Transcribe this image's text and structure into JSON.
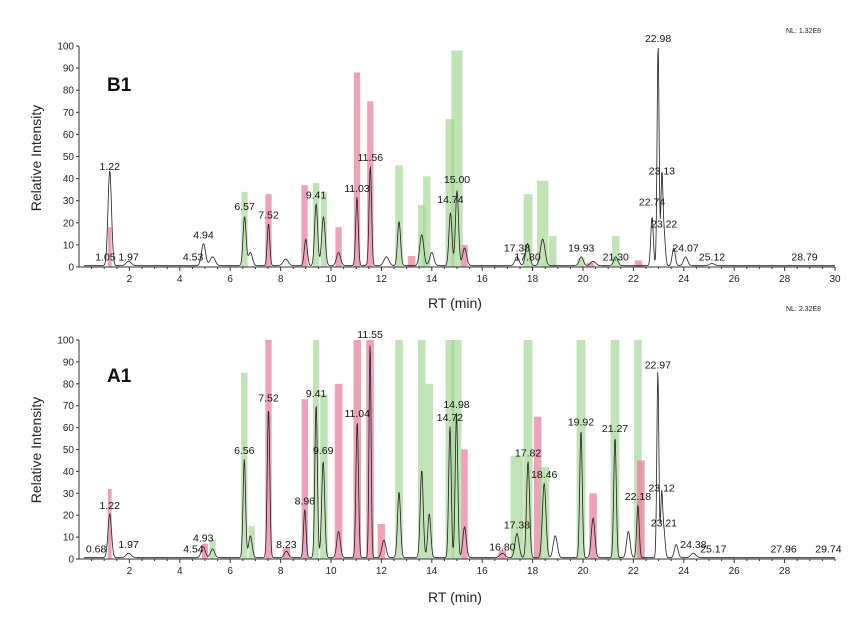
{
  "chart_data": [
    {
      "type": "chromatogram",
      "panel": "B1",
      "nl": "NL: 1.32E8",
      "xlabel": "RT (min)",
      "ylabel": "Relative Intensity",
      "xlim": [
        0,
        30
      ],
      "ylim": [
        0,
        100
      ],
      "x_ticks": [
        2,
        4,
        6,
        8,
        10,
        12,
        14,
        16,
        18,
        20,
        22,
        24,
        26,
        28,
        30
      ],
      "y_ticks": [
        0,
        10,
        20,
        30,
        40,
        50,
        60,
        70,
        80,
        90,
        100
      ],
      "peak_labels": [
        {
          "rt": 1.05,
          "text": "1.05",
          "y": 2
        },
        {
          "rt": 1.22,
          "text": "1.22",
          "y": 43
        },
        {
          "rt": 1.97,
          "text": "1.97",
          "y": 2
        },
        {
          "rt": 4.53,
          "text": "4.53",
          "y": 2
        },
        {
          "rt": 4.94,
          "text": "4.94",
          "y": 12
        },
        {
          "rt": 6.57,
          "text": "6.57",
          "y": 25
        },
        {
          "rt": 7.52,
          "text": "7.52",
          "y": 21
        },
        {
          "rt": 9.41,
          "text": "9.41",
          "y": 30
        },
        {
          "rt": 11.03,
          "text": "11.03",
          "y": 33
        },
        {
          "rt": 11.56,
          "text": "11.56",
          "y": 47
        },
        {
          "rt": 14.74,
          "text": "14.74",
          "y": 28
        },
        {
          "rt": 15.0,
          "text": "15.00",
          "y": 37
        },
        {
          "rt": 17.38,
          "text": "17.38",
          "y": 6
        },
        {
          "rt": 17.8,
          "text": "17.80",
          "y": 2
        },
        {
          "rt": 19.93,
          "text": "19.93",
          "y": 6
        },
        {
          "rt": 21.3,
          "text": "21.30",
          "y": 2
        },
        {
          "rt": 22.74,
          "text": "22.74",
          "y": 27
        },
        {
          "rt": 22.98,
          "text": "22.98",
          "y": 101
        },
        {
          "rt": 23.13,
          "text": "23.13",
          "y": 41
        },
        {
          "rt": 23.22,
          "text": "23.22",
          "y": 17
        },
        {
          "rt": 24.07,
          "text": "24.07",
          "y": 6
        },
        {
          "rt": 25.12,
          "text": "25.12",
          "y": 2
        },
        {
          "rt": 28.79,
          "text": "28.79",
          "y": 2
        }
      ],
      "peaks": [
        {
          "rt": 1.22,
          "h": 43,
          "w": 0.07
        },
        {
          "rt": 1.97,
          "h": 2,
          "w": 0.1
        },
        {
          "rt": 4.94,
          "h": 10,
          "w": 0.08
        },
        {
          "rt": 5.3,
          "h": 4,
          "w": 0.1
        },
        {
          "rt": 6.57,
          "h": 22,
          "w": 0.06
        },
        {
          "rt": 6.8,
          "h": 6,
          "w": 0.08
        },
        {
          "rt": 7.52,
          "h": 19,
          "w": 0.05
        },
        {
          "rt": 8.2,
          "h": 3,
          "w": 0.1
        },
        {
          "rt": 9.0,
          "h": 12,
          "w": 0.06
        },
        {
          "rt": 9.41,
          "h": 28,
          "w": 0.06
        },
        {
          "rt": 9.7,
          "h": 22,
          "w": 0.07
        },
        {
          "rt": 10.3,
          "h": 6,
          "w": 0.08
        },
        {
          "rt": 11.03,
          "h": 31,
          "w": 0.05
        },
        {
          "rt": 11.56,
          "h": 45,
          "w": 0.05
        },
        {
          "rt": 12.2,
          "h": 4,
          "w": 0.1
        },
        {
          "rt": 12.7,
          "h": 20,
          "w": 0.06
        },
        {
          "rt": 13.6,
          "h": 14,
          "w": 0.08
        },
        {
          "rt": 14.0,
          "h": 6,
          "w": 0.08
        },
        {
          "rt": 14.74,
          "h": 24,
          "w": 0.06
        },
        {
          "rt": 15.0,
          "h": 34,
          "w": 0.06
        },
        {
          "rt": 15.3,
          "h": 8,
          "w": 0.08
        },
        {
          "rt": 17.38,
          "h": 4,
          "w": 0.08
        },
        {
          "rt": 17.8,
          "h": 10,
          "w": 0.08
        },
        {
          "rt": 18.4,
          "h": 12,
          "w": 0.09
        },
        {
          "rt": 19.93,
          "h": 4,
          "w": 0.08
        },
        {
          "rt": 20.4,
          "h": 2,
          "w": 0.1
        },
        {
          "rt": 21.3,
          "h": 4,
          "w": 0.08
        },
        {
          "rt": 22.74,
          "h": 22,
          "w": 0.05
        },
        {
          "rt": 22.98,
          "h": 100,
          "w": 0.04
        },
        {
          "rt": 23.13,
          "h": 40,
          "w": 0.04
        },
        {
          "rt": 23.22,
          "h": 14,
          "w": 0.05
        },
        {
          "rt": 23.6,
          "h": 8,
          "w": 0.06
        },
        {
          "rt": 24.07,
          "h": 4,
          "w": 0.08
        },
        {
          "rt": 25.12,
          "h": 1,
          "w": 0.1
        }
      ],
      "bars": [
        {
          "rt": 1.22,
          "h": 18,
          "w": 0.15,
          "color": "pink"
        },
        {
          "rt": 6.57,
          "h": 34,
          "w": 0.25,
          "color": "green"
        },
        {
          "rt": 7.52,
          "h": 33,
          "w": 0.25,
          "color": "pink"
        },
        {
          "rt": 8.95,
          "h": 37,
          "w": 0.25,
          "color": "pink"
        },
        {
          "rt": 9.41,
          "h": 38,
          "w": 0.25,
          "color": "green"
        },
        {
          "rt": 9.72,
          "h": 34,
          "w": 0.25,
          "color": "green"
        },
        {
          "rt": 10.3,
          "h": 18,
          "w": 0.25,
          "color": "pink"
        },
        {
          "rt": 11.03,
          "h": 88,
          "w": 0.25,
          "color": "pink"
        },
        {
          "rt": 11.56,
          "h": 75,
          "w": 0.25,
          "color": "pink"
        },
        {
          "rt": 12.7,
          "h": 46,
          "w": 0.3,
          "color": "green"
        },
        {
          "rt": 13.2,
          "h": 5,
          "w": 0.3,
          "color": "pink"
        },
        {
          "rt": 13.6,
          "h": 28,
          "w": 0.3,
          "color": "green"
        },
        {
          "rt": 13.8,
          "h": 41,
          "w": 0.3,
          "color": "green"
        },
        {
          "rt": 14.72,
          "h": 67,
          "w": 0.35,
          "color": "green"
        },
        {
          "rt": 15.0,
          "h": 98,
          "w": 0.45,
          "color": "green"
        },
        {
          "rt": 15.3,
          "h": 10,
          "w": 0.25,
          "color": "pink"
        },
        {
          "rt": 17.82,
          "h": 33,
          "w": 0.35,
          "color": "green"
        },
        {
          "rt": 18.4,
          "h": 39,
          "w": 0.45,
          "color": "green"
        },
        {
          "rt": 18.8,
          "h": 14,
          "w": 0.3,
          "color": "green"
        },
        {
          "rt": 19.93,
          "h": 4,
          "w": 0.3,
          "color": "green"
        },
        {
          "rt": 20.3,
          "h": 2,
          "w": 0.3,
          "color": "pink"
        },
        {
          "rt": 21.3,
          "h": 14,
          "w": 0.3,
          "color": "green"
        },
        {
          "rt": 22.2,
          "h": 3,
          "w": 0.3,
          "color": "pink"
        }
      ]
    },
    {
      "type": "chromatogram",
      "panel": "A1",
      "nl": "NL: 2.32E8",
      "xlabel": "RT (min)",
      "ylabel": "Relative Intensity",
      "xlim": [
        0,
        30
      ],
      "ylim": [
        0,
        100
      ],
      "x_ticks": [
        2,
        4,
        6,
        8,
        10,
        12,
        14,
        16,
        18,
        20,
        22,
        24,
        26,
        28
      ],
      "y_ticks": [
        0,
        10,
        20,
        30,
        40,
        50,
        60,
        70,
        80,
        90,
        100
      ],
      "peak_labels": [
        {
          "rt": 0.68,
          "text": "0.68",
          "y": 2
        },
        {
          "rt": 1.22,
          "text": "1.22",
          "y": 22
        },
        {
          "rt": 1.97,
          "text": "1.97",
          "y": 4
        },
        {
          "rt": 4.54,
          "text": "4.54",
          "y": 2
        },
        {
          "rt": 4.93,
          "text": "4.93",
          "y": 7
        },
        {
          "rt": 6.56,
          "text": "6.56",
          "y": 47
        },
        {
          "rt": 7.52,
          "text": "7.52",
          "y": 71
        },
        {
          "rt": 8.23,
          "text": "8.23",
          "y": 4
        },
        {
          "rt": 8.96,
          "text": "8.96",
          "y": 24
        },
        {
          "rt": 9.41,
          "text": "9.41",
          "y": 73
        },
        {
          "rt": 9.69,
          "text": "9.69",
          "y": 47
        },
        {
          "rt": 11.04,
          "text": "11.04",
          "y": 64
        },
        {
          "rt": 11.55,
          "text": "11.55",
          "y": 100
        },
        {
          "rt": 14.72,
          "text": "14.72",
          "y": 62
        },
        {
          "rt": 14.98,
          "text": "14.98",
          "y": 68
        },
        {
          "rt": 16.8,
          "text": "16.80",
          "y": 3
        },
        {
          "rt": 17.38,
          "text": "17.38",
          "y": 13
        },
        {
          "rt": 17.82,
          "text": "17.82",
          "y": 46
        },
        {
          "rt": 18.46,
          "text": "18.46",
          "y": 36
        },
        {
          "rt": 19.92,
          "text": "19.92",
          "y": 60
        },
        {
          "rt": 21.27,
          "text": "21.27",
          "y": 57
        },
        {
          "rt": 22.18,
          "text": "22.18",
          "y": 26
        },
        {
          "rt": 22.97,
          "text": "22.97",
          "y": 86
        },
        {
          "rt": 23.12,
          "text": "23.12",
          "y": 30
        },
        {
          "rt": 23.21,
          "text": "23.21",
          "y": 14
        },
        {
          "rt": 24.38,
          "text": "24.38",
          "y": 4
        },
        {
          "rt": 25.17,
          "text": "25.17",
          "y": 2
        },
        {
          "rt": 27.96,
          "text": "27.96",
          "y": 2
        },
        {
          "rt": 29.74,
          "text": "29.74",
          "y": 2
        }
      ],
      "peaks": [
        {
          "rt": 1.22,
          "h": 20,
          "w": 0.07
        },
        {
          "rt": 1.97,
          "h": 2,
          "w": 0.1
        },
        {
          "rt": 4.93,
          "h": 5,
          "w": 0.08
        },
        {
          "rt": 5.3,
          "h": 4,
          "w": 0.08
        },
        {
          "rt": 6.56,
          "h": 45,
          "w": 0.05
        },
        {
          "rt": 6.8,
          "h": 10,
          "w": 0.07
        },
        {
          "rt": 7.52,
          "h": 68,
          "w": 0.05
        },
        {
          "rt": 8.23,
          "h": 3,
          "w": 0.08
        },
        {
          "rt": 8.96,
          "h": 22,
          "w": 0.05
        },
        {
          "rt": 9.41,
          "h": 70,
          "w": 0.05
        },
        {
          "rt": 9.69,
          "h": 44,
          "w": 0.06
        },
        {
          "rt": 10.3,
          "h": 12,
          "w": 0.07
        },
        {
          "rt": 11.04,
          "h": 62,
          "w": 0.05
        },
        {
          "rt": 11.55,
          "h": 98,
          "w": 0.04
        },
        {
          "rt": 12.1,
          "h": 8,
          "w": 0.08
        },
        {
          "rt": 12.7,
          "h": 30,
          "w": 0.06
        },
        {
          "rt": 13.6,
          "h": 40,
          "w": 0.06
        },
        {
          "rt": 13.9,
          "h": 20,
          "w": 0.06
        },
        {
          "rt": 14.72,
          "h": 60,
          "w": 0.05
        },
        {
          "rt": 14.98,
          "h": 66,
          "w": 0.05
        },
        {
          "rt": 15.3,
          "h": 14,
          "w": 0.07
        },
        {
          "rt": 16.8,
          "h": 2,
          "w": 0.1
        },
        {
          "rt": 17.38,
          "h": 11,
          "w": 0.08
        },
        {
          "rt": 17.82,
          "h": 44,
          "w": 0.06
        },
        {
          "rt": 18.46,
          "h": 34,
          "w": 0.07
        },
        {
          "rt": 18.9,
          "h": 10,
          "w": 0.08
        },
        {
          "rt": 19.92,
          "h": 58,
          "w": 0.05
        },
        {
          "rt": 20.4,
          "h": 18,
          "w": 0.07
        },
        {
          "rt": 21.27,
          "h": 55,
          "w": 0.05
        },
        {
          "rt": 21.8,
          "h": 12,
          "w": 0.07
        },
        {
          "rt": 22.18,
          "h": 24,
          "w": 0.05
        },
        {
          "rt": 22.97,
          "h": 85,
          "w": 0.04
        },
        {
          "rt": 23.12,
          "h": 28,
          "w": 0.04
        },
        {
          "rt": 23.21,
          "h": 12,
          "w": 0.05
        },
        {
          "rt": 23.7,
          "h": 6,
          "w": 0.07
        },
        {
          "rt": 24.38,
          "h": 2,
          "w": 0.1
        }
      ],
      "bars": [
        {
          "rt": 1.22,
          "h": 32,
          "w": 0.15,
          "color": "pink"
        },
        {
          "rt": 5.0,
          "h": 7,
          "w": 0.25,
          "color": "pink"
        },
        {
          "rt": 5.3,
          "h": 9,
          "w": 0.25,
          "color": "green"
        },
        {
          "rt": 6.56,
          "h": 85,
          "w": 0.25,
          "color": "green"
        },
        {
          "rt": 6.85,
          "h": 15,
          "w": 0.25,
          "color": "green"
        },
        {
          "rt": 7.52,
          "h": 100,
          "w": 0.25,
          "color": "pink"
        },
        {
          "rt": 8.23,
          "h": 5,
          "w": 0.3,
          "color": "pink"
        },
        {
          "rt": 8.96,
          "h": 73,
          "w": 0.25,
          "color": "pink"
        },
        {
          "rt": 9.41,
          "h": 100,
          "w": 0.25,
          "color": "green"
        },
        {
          "rt": 9.72,
          "h": 75,
          "w": 0.3,
          "color": "green"
        },
        {
          "rt": 10.3,
          "h": 80,
          "w": 0.3,
          "color": "pink"
        },
        {
          "rt": 11.04,
          "h": 100,
          "w": 0.3,
          "color": "pink"
        },
        {
          "rt": 11.55,
          "h": 100,
          "w": 0.3,
          "color": "pink"
        },
        {
          "rt": 12.0,
          "h": 16,
          "w": 0.3,
          "color": "pink"
        },
        {
          "rt": 12.7,
          "h": 100,
          "w": 0.3,
          "color": "green"
        },
        {
          "rt": 13.6,
          "h": 100,
          "w": 0.3,
          "color": "green"
        },
        {
          "rt": 13.9,
          "h": 80,
          "w": 0.3,
          "color": "green"
        },
        {
          "rt": 14.72,
          "h": 100,
          "w": 0.35,
          "color": "green"
        },
        {
          "rt": 14.98,
          "h": 100,
          "w": 0.4,
          "color": "green"
        },
        {
          "rt": 15.3,
          "h": 50,
          "w": 0.25,
          "color": "pink"
        },
        {
          "rt": 16.8,
          "h": 4,
          "w": 0.3,
          "color": "pink"
        },
        {
          "rt": 17.38,
          "h": 47,
          "w": 0.5,
          "color": "green"
        },
        {
          "rt": 17.82,
          "h": 100,
          "w": 0.35,
          "color": "green"
        },
        {
          "rt": 18.2,
          "h": 65,
          "w": 0.3,
          "color": "pink"
        },
        {
          "rt": 18.46,
          "h": 42,
          "w": 0.4,
          "color": "green"
        },
        {
          "rt": 19.92,
          "h": 100,
          "w": 0.35,
          "color": "green"
        },
        {
          "rt": 20.4,
          "h": 30,
          "w": 0.3,
          "color": "pink"
        },
        {
          "rt": 21.27,
          "h": 100,
          "w": 0.35,
          "color": "green"
        },
        {
          "rt": 22.18,
          "h": 100,
          "w": 0.3,
          "color": "green"
        },
        {
          "rt": 22.3,
          "h": 45,
          "w": 0.3,
          "color": "pink"
        }
      ]
    }
  ],
  "colors": {
    "pink": "#e8829f",
    "green": "#9fd58f",
    "trace": "#1f1f1f",
    "axis": "#333333"
  }
}
